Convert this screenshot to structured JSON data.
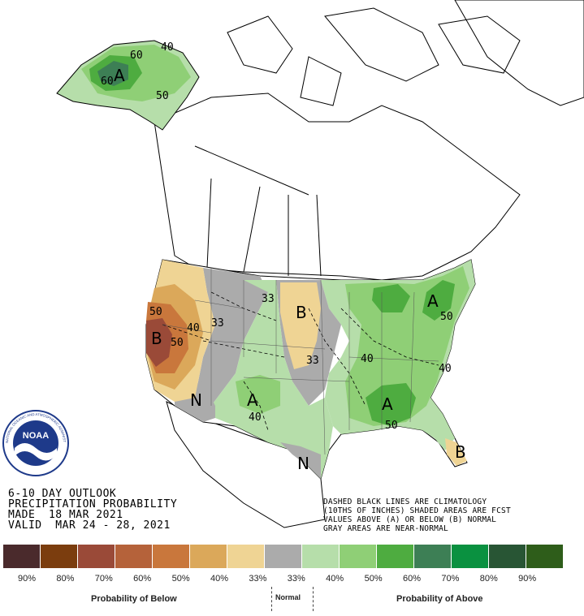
{
  "title": {
    "line1": "6-10 DAY OUTLOOK",
    "line2": "PRECIPITATION PROBABILITY",
    "line3": "MADE  18 MAR 2021",
    "line4": "VALID  MAR 24 - 28, 2021"
  },
  "notes": {
    "line1": "DASHED BLACK LINES ARE CLIMATOLOGY",
    "line2": "(10THS OF INCHES) SHADED AREAS ARE FCST",
    "line3": "VALUES ABOVE (A) OR BELOW (B) NORMAL",
    "line4": "GRAY AREAS ARE NEAR-NORMAL"
  },
  "logo": {
    "text": "NOAA",
    "ring_text": "NATIONAL OCEANIC AND ATMOSPHERIC ADMINISTRATION · U.S. DEPARTMENT OF COMMERCE"
  },
  "map_labels": {
    "alaska_a": "A",
    "alaska_60a": "60",
    "alaska_60b": "60",
    "alaska_40": "40",
    "alaska_50": "50",
    "west_b": "B",
    "west_50a": "50",
    "west_50b": "50",
    "west_40": "40",
    "west_33": "33",
    "southwest_n": "N",
    "southwest_a": "A",
    "southwest_40": "40",
    "plains_b": "B",
    "plains_33a": "33",
    "plains_33b": "33",
    "texas_n": "N",
    "southeast_a": "A",
    "southeast_50": "50",
    "southeast_40": "40",
    "midwest_40": "40",
    "northeast_a": "A",
    "northeast_50": "50",
    "florida_b": "B"
  },
  "legend": {
    "below_caption": "Probability of Below",
    "normal_caption": "Normal",
    "above_caption": "Probability of Above",
    "categories": [
      {
        "color": "#4a2a2c",
        "label": "90%"
      },
      {
        "color": "#7b3d0e",
        "label": "80%"
      },
      {
        "color": "#9a4a38",
        "label": "70%"
      },
      {
        "color": "#b5623a",
        "label": "60%"
      },
      {
        "color": "#c9773c",
        "label": "50%"
      },
      {
        "color": "#dba85a",
        "label": "40%"
      },
      {
        "color": "#efd494",
        "label": "33%"
      },
      {
        "color": "#ababab",
        "label": "33%"
      },
      {
        "color": "#b6deaa",
        "label": "40%"
      },
      {
        "color": "#8fcf76",
        "label": "50%"
      },
      {
        "color": "#4eac40",
        "label": "60%"
      },
      {
        "color": "#3d7f55",
        "label": "70%"
      },
      {
        "color": "#0a9140",
        "label": "80%"
      },
      {
        "color": "#285534",
        "label": "90%"
      },
      {
        "color": "#2e5d1a",
        "label": ""
      }
    ]
  }
}
